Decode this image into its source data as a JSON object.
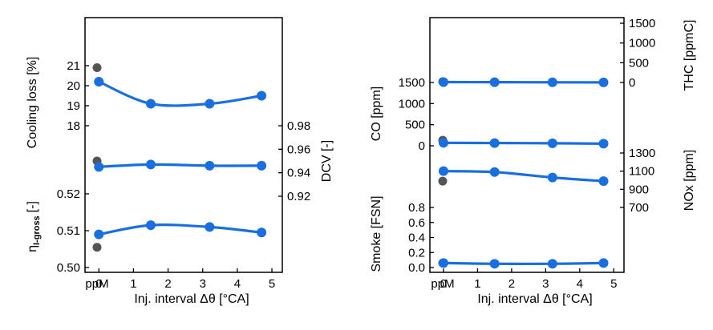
{
  "colors": {
    "series": "#1a6fe0",
    "reference": "#555555",
    "axis": "#000000"
  },
  "x_axis": {
    "label": "Inj. interval Δθ [°CA]",
    "ticks": [
      "ppM",
      "0",
      "1",
      "2",
      "3",
      "4",
      "5"
    ]
  },
  "chart_data": [
    {
      "type": "scatter",
      "panel": "left",
      "x": [
        0,
        1.5,
        3.2,
        4.7
      ],
      "xlim": [
        -0.4,
        5.3
      ],
      "reference_label": "ppM",
      "series": [
        {
          "axis_label": "Cooling loss [%]",
          "reference": 20.9,
          "values": [
            20.2,
            19.1,
            19.1,
            19.5
          ],
          "ticks": [
            "18",
            "19",
            "20",
            "21"
          ]
        },
        {
          "axis_label": "DCV [-]",
          "reference": 0.95,
          "values": [
            0.945,
            0.947,
            0.946,
            0.946
          ],
          "ticks": [
            "0.92",
            "0.94",
            "0.96",
            "0.98"
          ]
        },
        {
          "axis_label": "η",
          "axis_label_sub": "I-gross",
          "axis_label_unit": "[-]",
          "reference": 0.5055,
          "values": [
            0.509,
            0.5115,
            0.511,
            0.5095
          ],
          "ticks": [
            "0.50",
            "0.51",
            "0.52"
          ]
        }
      ]
    },
    {
      "type": "scatter",
      "panel": "right",
      "x": [
        0,
        1.5,
        3.2,
        4.7
      ],
      "xlim": [
        -0.4,
        5.3
      ],
      "reference_label": "ppM",
      "series": [
        {
          "axis_label": "THC [ppmC]",
          "reference": 20,
          "values": [
            10,
            8,
            5,
            3
          ],
          "ticks": [
            "0",
            "500",
            "1000",
            "1500"
          ]
        },
        {
          "axis_label": "CO [ppm]",
          "reference": 130,
          "values": [
            70,
            65,
            60,
            50
          ],
          "ticks": [
            "0",
            "500",
            "1000",
            "1500"
          ]
        },
        {
          "axis_label": "NOx [ppm]",
          "reference": 990,
          "values": [
            1100,
            1090,
            1030,
            990
          ],
          "ticks": [
            "700",
            "900",
            "1100",
            "1300"
          ]
        },
        {
          "axis_label": "Smoke [FSN]",
          "reference": 0.06,
          "values": [
            0.06,
            0.05,
            0.05,
            0.06
          ],
          "ticks": [
            "0.0",
            "0.2",
            "0.4",
            "0.6",
            "0.8"
          ]
        }
      ]
    }
  ]
}
